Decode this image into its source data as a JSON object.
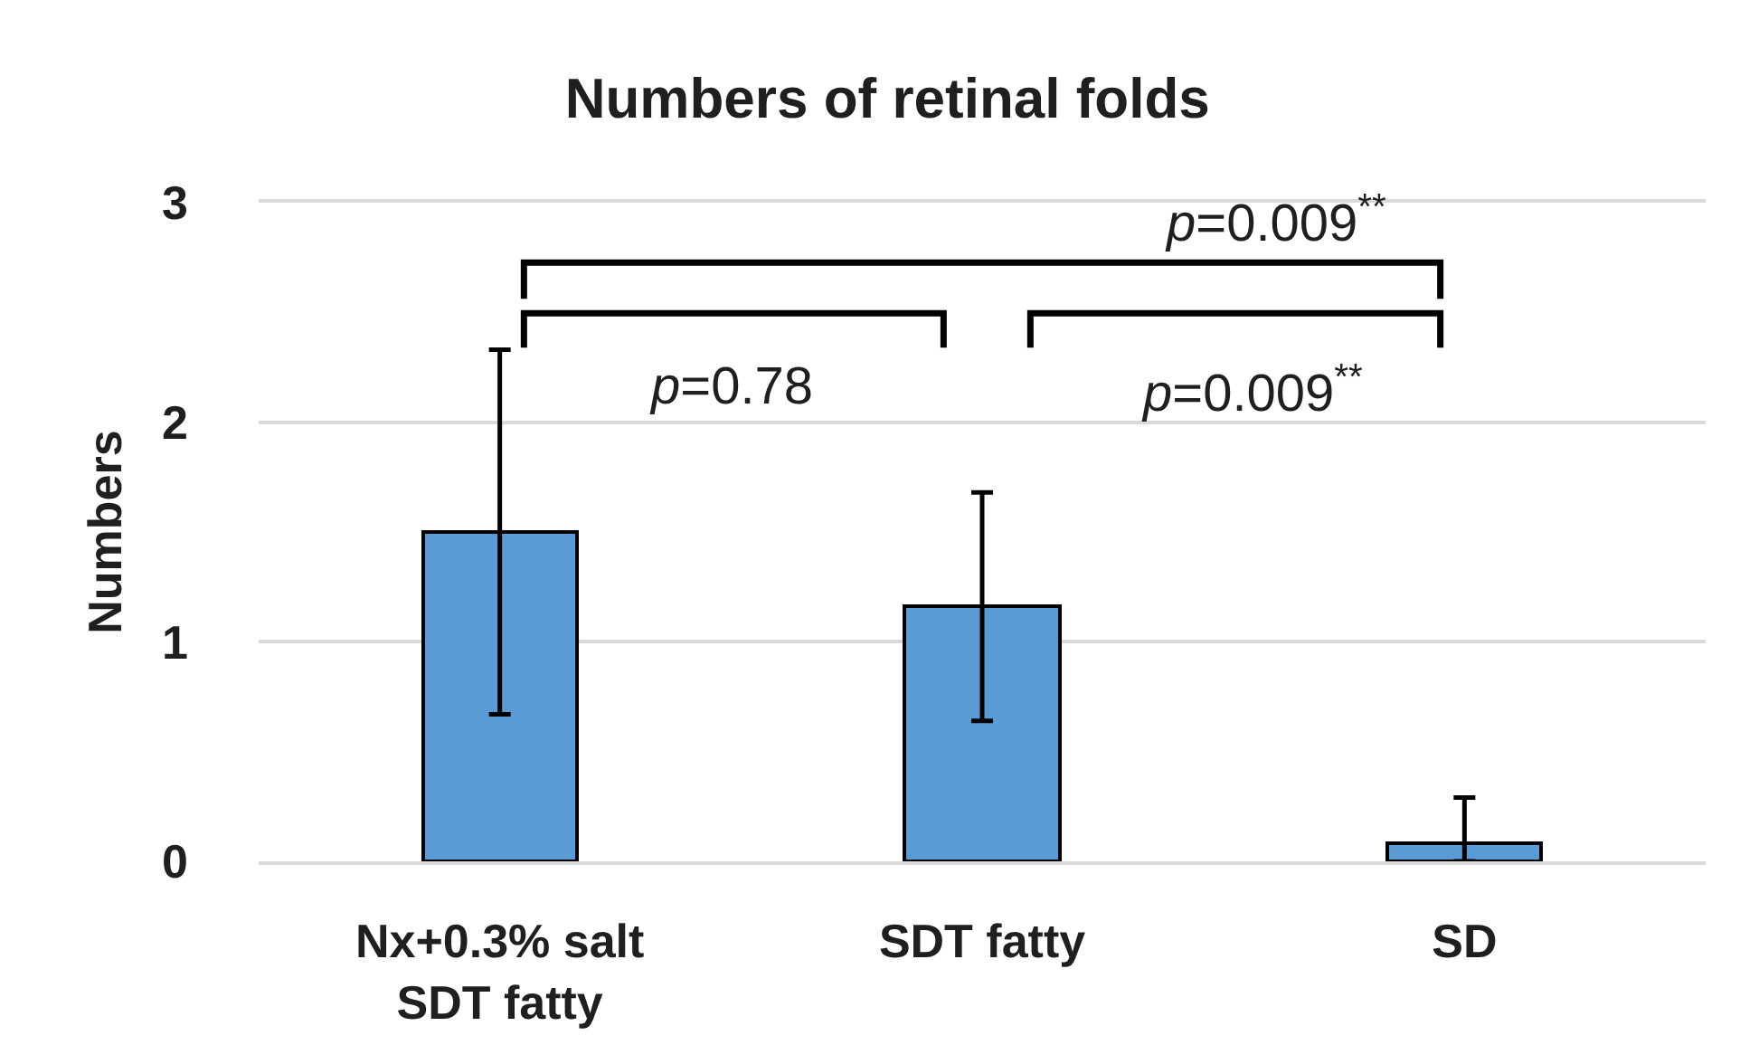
{
  "chart_data": {
    "type": "bar",
    "title": "Numbers of retinal folds",
    "ylabel": "Numbers",
    "categories": [
      "Nx+0.3% salt\nSDT fatty",
      "SDT fatty",
      "SD"
    ],
    "values": [
      1.5,
      1.16,
      0.08
    ],
    "errors": [
      0.83,
      0.52,
      [
        0,
        0.29
      ]
    ],
    "color": "#5b9bd5",
    "ylim": [
      0,
      3
    ],
    "yticks": [
      0,
      1,
      2,
      3
    ],
    "grid": "y",
    "annotations": [
      "p=0.009$^{**}$",
      "p=0.78",
      "p=0.009$^{**}$"
    ]
  }
}
